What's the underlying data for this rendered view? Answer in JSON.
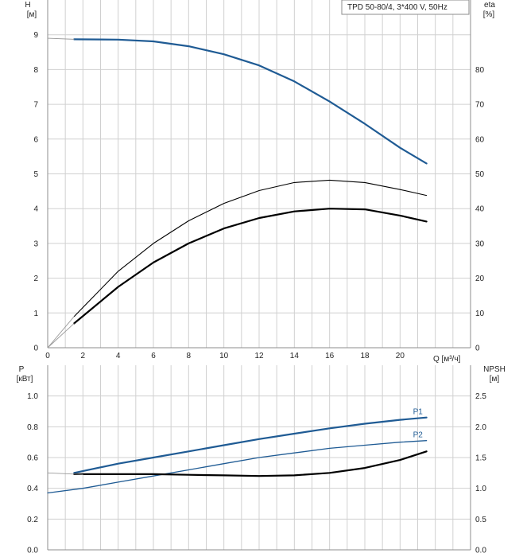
{
  "title": "TPD 50-80/4, 3*400 V, 50Hz",
  "colors": {
    "blue": "#1f5b94",
    "black": "#000000",
    "grid": "#d0d0d0",
    "axis": "#8c8c8c"
  },
  "chart_data": [
    {
      "type": "line",
      "name": "head-efficiency",
      "xlabel": "Q [м³/ч]",
      "ylabel_left_line1": "H",
      "ylabel_left_line2": "[м]",
      "ylabel_right_line1": "eta",
      "ylabel_right_line2": "[%]",
      "xlim": [
        0,
        24
      ],
      "ylim": [
        0,
        10
      ],
      "y2lim": [
        0,
        100
      ],
      "x_ticks": [
        0,
        2,
        4,
        6,
        8,
        10,
        12,
        14,
        16,
        18,
        20
      ],
      "y_ticks": [
        0,
        1,
        2,
        3,
        4,
        5,
        6,
        7,
        8,
        9
      ],
      "y2_ticks": [
        0,
        10,
        20,
        30,
        40,
        50,
        60,
        70,
        80
      ],
      "grid": true,
      "series": [
        {
          "key": "H",
          "axis": "left",
          "color": "#1f5b94",
          "width": 2.2,
          "x": [
            1.5,
            4,
            6,
            8,
            10,
            12,
            14,
            16,
            18,
            20,
            21.5
          ],
          "y": [
            8.87,
            8.86,
            8.81,
            8.67,
            8.44,
            8.12,
            7.66,
            7.08,
            6.44,
            5.75,
            5.3
          ]
        },
        {
          "key": "eta_thin",
          "axis": "right",
          "color": "#000000",
          "width": 1.1,
          "x": [
            1.5,
            4,
            6,
            8,
            10,
            12,
            14,
            16,
            18,
            20,
            21.5
          ],
          "y": [
            9,
            22,
            30,
            36.5,
            41.5,
            45.2,
            47.5,
            48.2,
            47.5,
            45.5,
            43.8
          ]
        },
        {
          "key": "eta_thick",
          "axis": "right",
          "color": "#000000",
          "width": 2.2,
          "x": [
            1.5,
            4,
            6,
            8,
            10,
            12,
            14,
            16,
            18,
            20,
            21.5
          ],
          "y": [
            7,
            17.5,
            24.5,
            30,
            34.3,
            37.3,
            39.2,
            40,
            39.8,
            38,
            36.3
          ]
        }
      ]
    },
    {
      "type": "line",
      "name": "power-npsh",
      "ylabel_left_line1": "P",
      "ylabel_left_line2": "[кВт]",
      "ylabel_right_line1": "NPSH",
      "ylabel_right_line2": "[м]",
      "xlim": [
        0,
        24
      ],
      "ylim": [
        0,
        1.2
      ],
      "y2lim": [
        0,
        3
      ],
      "y_ticks": [
        0.0,
        0.2,
        0.4,
        0.6,
        0.8,
        1.0
      ],
      "y_tick_labels": [
        "0.0",
        "0.2",
        "0.4",
        "0.6",
        "0.8",
        "1.0"
      ],
      "y2_ticks": [
        0.0,
        0.5,
        1.0,
        1.5,
        2.0,
        2.5
      ],
      "y2_tick_labels": [
        "0.0",
        "0.5",
        "1.0",
        "1.5",
        "2.0",
        "2.5"
      ],
      "grid": true,
      "series": [
        {
          "key": "P1",
          "label": "P1",
          "axis": "left",
          "color": "#1f5b94",
          "width": 2.2,
          "x": [
            1.5,
            4,
            6,
            8,
            10,
            12,
            14,
            16,
            18,
            20,
            21.5
          ],
          "y": [
            0.5,
            0.56,
            0.6,
            0.64,
            0.68,
            0.72,
            0.755,
            0.79,
            0.82,
            0.845,
            0.86
          ]
        },
        {
          "key": "P2",
          "label": "P2",
          "axis": "left",
          "color": "#1f5b94",
          "width": 1.3,
          "x": [
            0,
            2,
            4,
            6,
            8,
            10,
            12,
            14,
            16,
            18,
            20,
            21.5
          ],
          "y": [
            0.37,
            0.4,
            0.44,
            0.48,
            0.52,
            0.56,
            0.6,
            0.63,
            0.66,
            0.68,
            0.7,
            0.71
          ]
        },
        {
          "key": "NPSH",
          "axis": "right",
          "color": "#000000",
          "width": 2.2,
          "x": [
            1.5,
            4,
            6,
            8,
            10,
            12,
            14,
            16,
            18,
            20,
            21.5
          ],
          "y": [
            1.23,
            1.23,
            1.23,
            1.22,
            1.21,
            1.2,
            1.21,
            1.25,
            1.33,
            1.46,
            1.6
          ]
        },
        {
          "key": "P_thin_gray",
          "axis": "left",
          "color": "#9a9a9a",
          "width": 0.9,
          "x": [
            0,
            2
          ],
          "y": [
            0.5,
            0.49
          ]
        }
      ]
    }
  ]
}
